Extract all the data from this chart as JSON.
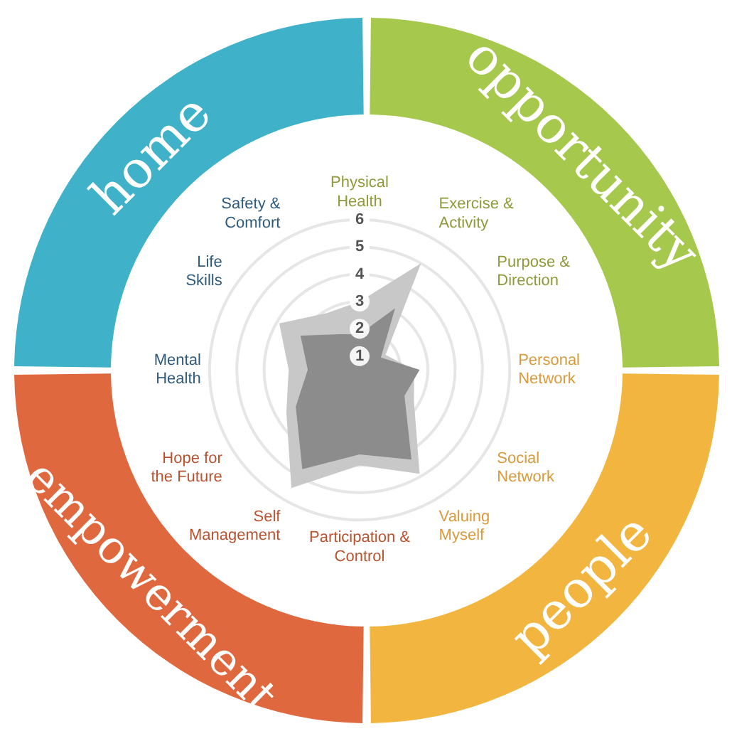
{
  "chart_data": {
    "type": "radar",
    "categories": [
      "Physical Health",
      "Exercise & Activity",
      "Purpose & Direction",
      "Personal Network",
      "Social Network",
      "Valuing Myself",
      "Participation & Control",
      "Self Management",
      "Hope for the Future",
      "Mental Health",
      "Life Skills",
      "Safety & Comfort"
    ],
    "series": [
      {
        "color": "#c8c8c8",
        "values": [
          3.0,
          5.0,
          1.6,
          2.5,
          2.8,
          4.9,
          4.0,
          5.5,
          3.6,
          3.1,
          3.9,
          2.9
        ]
      },
      {
        "color": "#8c8c8c",
        "values": [
          1.8,
          3.1,
          1.4,
          2.7,
          2.4,
          4.3,
          3.6,
          4.7,
          3.2,
          2.4,
          3.0,
          2.0
        ]
      }
    ],
    "ylim": [
      0.5,
      6
    ],
    "yticks": [
      1,
      2,
      3,
      4,
      5,
      6
    ],
    "grid": true,
    "legend": false,
    "annotations": [
      "opportunity",
      "people",
      "empowerment",
      "home"
    ]
  }
}
